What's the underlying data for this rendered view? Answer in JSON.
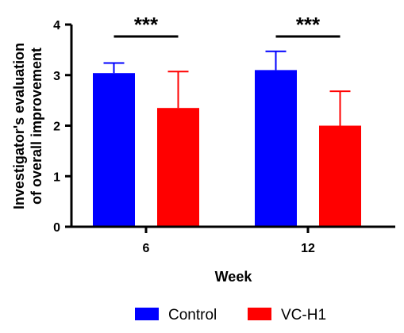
{
  "chart_data": {
    "type": "bar",
    "title": "",
    "xlabel": "Week",
    "ylabel_lines": [
      "Investigator's evaluation",
      "of overall improvement"
    ],
    "categories": [
      "6",
      "12"
    ],
    "ylim": [
      0,
      4
    ],
    "yticks": [
      "0",
      "1",
      "2",
      "3",
      "4"
    ],
    "series": [
      {
        "name": "Control",
        "color": "#0000ff",
        "values": [
          3.04,
          3.1
        ],
        "errors": [
          0.2,
          0.37
        ]
      },
      {
        "name": "VC-H1",
        "color": "#ff0000",
        "values": [
          2.35,
          2.0
        ],
        "errors": [
          0.72,
          0.68
        ]
      }
    ],
    "significance": [
      "***",
      "***"
    ],
    "legend_position": "bottom-center",
    "grid": false
  }
}
